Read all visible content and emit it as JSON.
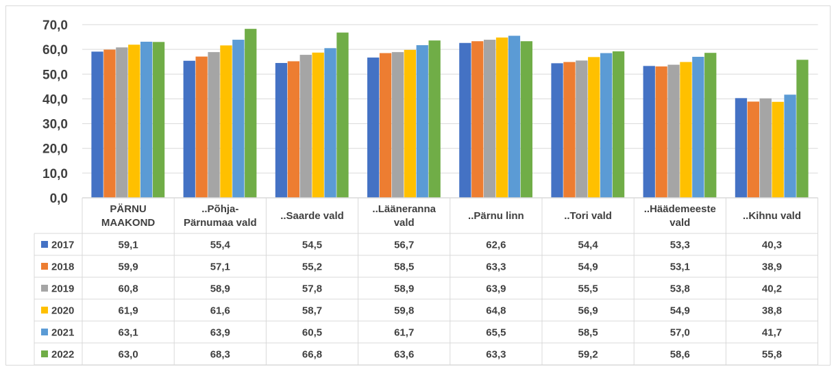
{
  "chart_data": {
    "type": "bar",
    "categories": [
      [
        "PÄRNU",
        "MAAKOND"
      ],
      [
        "..Põhja-",
        "Pärnumaa vald"
      ],
      [
        "..Saarde vald"
      ],
      [
        "..Lääneranna",
        "vald"
      ],
      [
        "..Pärnu linn"
      ],
      [
        "..Tori vald"
      ],
      [
        "..Häädemeeste",
        "vald"
      ],
      [
        "..Kihnu vald"
      ]
    ],
    "series": [
      {
        "name": "2017",
        "color": "#4472c4",
        "values": [
          59.1,
          55.4,
          54.5,
          56.7,
          62.6,
          54.4,
          53.3,
          40.3
        ],
        "labels": [
          "59,1",
          "55,4",
          "54,5",
          "56,7",
          "62,6",
          "54,4",
          "53,3",
          "40,3"
        ]
      },
      {
        "name": "2018",
        "color": "#ed7d31",
        "values": [
          59.9,
          57.1,
          55.2,
          58.5,
          63.3,
          54.9,
          53.1,
          38.9
        ],
        "labels": [
          "59,9",
          "57,1",
          "55,2",
          "58,5",
          "63,3",
          "54,9",
          "53,1",
          "38,9"
        ]
      },
      {
        "name": "2019",
        "color": "#a5a5a5",
        "values": [
          60.8,
          58.9,
          57.8,
          58.9,
          63.9,
          55.5,
          53.8,
          40.2
        ],
        "labels": [
          "60,8",
          "58,9",
          "57,8",
          "58,9",
          "63,9",
          "55,5",
          "53,8",
          "40,2"
        ]
      },
      {
        "name": "2020",
        "color": "#ffc000",
        "values": [
          61.9,
          61.6,
          58.7,
          59.8,
          64.8,
          56.9,
          54.9,
          38.8
        ],
        "labels": [
          "61,9",
          "61,6",
          "58,7",
          "59,8",
          "64,8",
          "56,9",
          "54,9",
          "38,8"
        ]
      },
      {
        "name": "2021",
        "color": "#5b9bd5",
        "values": [
          63.1,
          63.9,
          60.5,
          61.7,
          65.5,
          58.5,
          57.0,
          41.7
        ],
        "labels": [
          "63,1",
          "63,9",
          "60,5",
          "61,7",
          "65,5",
          "58,5",
          "57,0",
          "41,7"
        ]
      },
      {
        "name": "2022",
        "color": "#70ad47",
        "values": [
          63.0,
          68.3,
          66.8,
          63.6,
          63.3,
          59.2,
          58.6,
          55.8
        ],
        "labels": [
          "63,0",
          "68,3",
          "66,8",
          "63,6",
          "63,3",
          "59,2",
          "58,6",
          "55,8"
        ]
      }
    ],
    "yticks": [
      "0,0",
      "10,0",
      "20,0",
      "30,0",
      "40,0",
      "50,0",
      "60,0",
      "70,0"
    ],
    "ylim": [
      0,
      70
    ],
    "grid": true,
    "legend": "data-table",
    "title": "",
    "xlabel": "",
    "ylabel": ""
  }
}
